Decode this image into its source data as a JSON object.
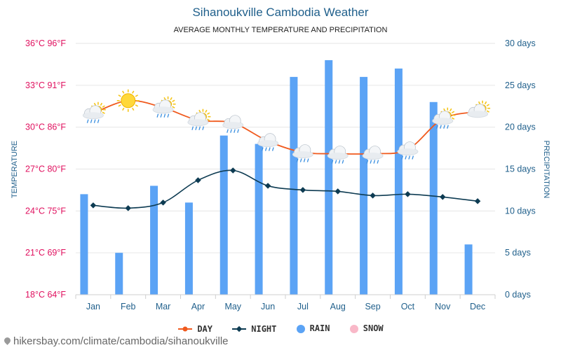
{
  "chart_data": {
    "type": "bar+line",
    "title": "Sihanoukville Cambodia Weather",
    "subtitle": "AVERAGE MONTHLY TEMPERATURE AND PRECIPITATION",
    "categories": [
      "Jan",
      "Feb",
      "Mar",
      "Apr",
      "May",
      "Jun",
      "Jul",
      "Aug",
      "Sep",
      "Oct",
      "Nov",
      "Dec"
    ],
    "left_axis": {
      "label": "TEMPERATURE",
      "range_c": [
        18,
        36
      ],
      "ticks": [
        "18°C 64°F",
        "21°C 69°F",
        "24°C 75°F",
        "27°C 80°F",
        "30°C 86°F",
        "33°C 91°F",
        "36°C 96°F"
      ]
    },
    "right_axis": {
      "label": "PRECIPITATION",
      "range_days": [
        0,
        30
      ],
      "ticks": [
        "0 days",
        "5 days",
        "10 days",
        "15 days",
        "20 days",
        "25 days",
        "30 days"
      ]
    },
    "series": [
      {
        "name": "DAY",
        "type": "line",
        "unit": "°C",
        "color": "#f05a1e",
        "values": [
          31.0,
          31.9,
          31.4,
          30.5,
          30.3,
          29.0,
          28.2,
          28.1,
          28.1,
          28.4,
          30.6,
          31.1
        ]
      },
      {
        "name": "NIGHT",
        "type": "line",
        "unit": "°C",
        "color": "#0d3b52",
        "values": [
          24.4,
          24.2,
          24.6,
          26.2,
          26.9,
          25.8,
          25.5,
          25.4,
          25.1,
          25.2,
          25.0,
          24.7
        ]
      },
      {
        "name": "RAIN",
        "type": "bar",
        "unit": "days",
        "color": "#5ba3f5",
        "values": [
          12,
          5,
          13,
          11,
          19,
          18,
          26,
          28,
          26,
          27,
          23,
          6
        ]
      },
      {
        "name": "SNOW",
        "type": "bar",
        "unit": "days",
        "color": "#f9b8c8",
        "values": [
          0,
          0,
          0,
          0,
          0,
          0,
          0,
          0,
          0,
          0,
          0,
          0
        ]
      }
    ],
    "weather_icons": [
      "sun-cloud-rain",
      "sun",
      "sun-cloud-rain",
      "sun-cloud-rain",
      "cloud-rain",
      "cloud-rain",
      "cloud-rain",
      "cloud-rain",
      "cloud-rain",
      "cloud-rain",
      "sun-cloud-rain",
      "sun-cloud"
    ],
    "colors": {
      "left_axis_text": "#e0115f",
      "right_axis_text": "#1f5f8b",
      "title": "#1f5f8b",
      "grid": "#e6e6e6"
    },
    "grid": true,
    "legend_position": "bottom"
  },
  "footer": {
    "source": "hikersbay.com/climate/cambodia/sihanoukville"
  }
}
